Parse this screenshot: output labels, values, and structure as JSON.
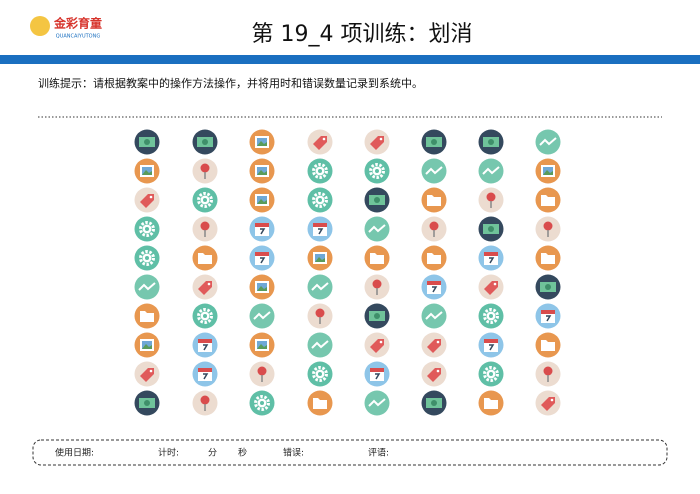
{
  "header": {
    "logo": "金彩育童",
    "logo_sub": "QUANCAIYUTONG",
    "title": "第 19_4 项训练：划消"
  },
  "instruction": "训练提示：请根据教案中的操作方法操作，并将用时和错误数量记录到系统中。",
  "footer": {
    "date": "使用日期:",
    "timer": "计时:",
    "minutes": "分",
    "seconds": "秒",
    "errors": "错误:",
    "comment": "评语:"
  }
}
